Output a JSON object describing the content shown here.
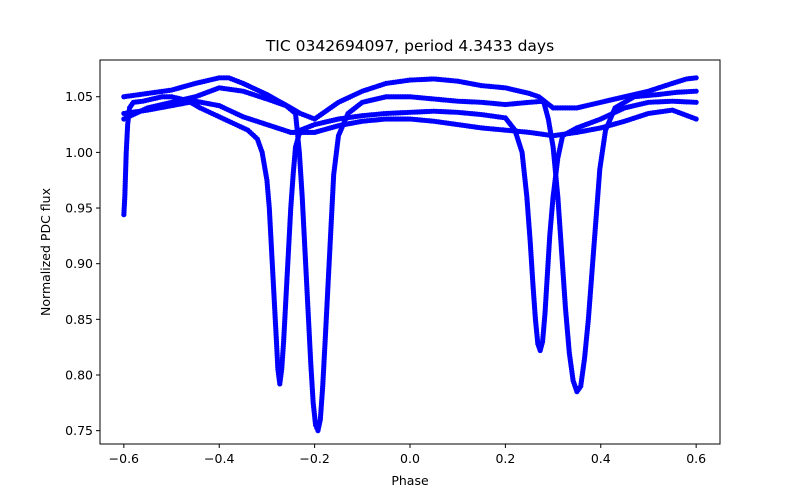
{
  "chart_data": {
    "type": "scatter",
    "title": "TIC 0342694097, period 4.3433 days",
    "xlabel": "Phase",
    "ylabel": "Normalized PDC flux",
    "xlim": [
      -0.65,
      0.65
    ],
    "ylim": [
      0.738,
      1.083
    ],
    "x_ticks": [
      -0.6,
      -0.4,
      -0.2,
      0.0,
      0.2,
      0.4,
      0.6
    ],
    "x_tick_labels": [
      "−0.6",
      "−0.4",
      "−0.2",
      "0.0",
      "0.2",
      "0.4",
      "0.6"
    ],
    "y_ticks": [
      0.75,
      0.8,
      0.85,
      0.9,
      0.95,
      1.0,
      1.05
    ],
    "y_tick_labels": [
      "0.75",
      "0.80",
      "0.85",
      "0.90",
      "0.95",
      "1.00",
      "1.05"
    ],
    "grid": false,
    "legend": "none",
    "marker_color": "#0000ff",
    "series": [
      {
        "description": "eclipse group 1 (deeper-phase primary near −0.273 / 0.273)",
        "points": [
          [
            -0.6,
            0.944
          ],
          [
            -0.598,
            0.96
          ],
          [
            -0.595,
            1.0
          ],
          [
            -0.592,
            1.025
          ],
          [
            -0.588,
            1.04
          ],
          [
            -0.58,
            1.045
          ],
          [
            -0.56,
            1.046
          ],
          [
            -0.54,
            1.048
          ],
          [
            -0.52,
            1.05
          ],
          [
            -0.5,
            1.05
          ],
          [
            -0.48,
            1.048
          ],
          [
            -0.46,
            1.045
          ],
          [
            -0.44,
            1.04
          ],
          [
            -0.42,
            1.036
          ],
          [
            -0.4,
            1.032
          ],
          [
            -0.38,
            1.028
          ],
          [
            -0.36,
            1.024
          ],
          [
            -0.34,
            1.02
          ],
          [
            -0.32,
            1.012
          ],
          [
            -0.31,
            1.0
          ],
          [
            -0.3,
            0.975
          ],
          [
            -0.295,
            0.95
          ],
          [
            -0.29,
            0.91
          ],
          [
            -0.285,
            0.87
          ],
          [
            -0.28,
            0.83
          ],
          [
            -0.277,
            0.805
          ],
          [
            -0.273,
            0.792
          ],
          [
            -0.269,
            0.805
          ],
          [
            -0.265,
            0.83
          ],
          [
            -0.26,
            0.87
          ],
          [
            -0.255,
            0.91
          ],
          [
            -0.25,
            0.95
          ],
          [
            -0.245,
            0.98
          ],
          [
            -0.24,
            1.005
          ],
          [
            -0.23,
            1.02
          ],
          [
            -0.2,
            1.025
          ],
          [
            -0.15,
            1.03
          ],
          [
            -0.1,
            1.033
          ],
          [
            -0.05,
            1.035
          ],
          [
            0.0,
            1.036
          ],
          [
            0.05,
            1.037
          ],
          [
            0.1,
            1.036
          ],
          [
            0.15,
            1.034
          ],
          [
            0.2,
            1.031
          ],
          [
            0.22,
            1.02
          ],
          [
            0.235,
            1.0
          ],
          [
            0.245,
            0.96
          ],
          [
            0.252,
            0.92
          ],
          [
            0.258,
            0.88
          ],
          [
            0.263,
            0.85
          ],
          [
            0.268,
            0.828
          ],
          [
            0.273,
            0.822
          ],
          [
            0.278,
            0.83
          ],
          [
            0.283,
            0.855
          ],
          [
            0.288,
            0.89
          ],
          [
            0.293,
            0.925
          ],
          [
            0.3,
            0.96
          ],
          [
            0.31,
            0.995
          ],
          [
            0.32,
            1.015
          ],
          [
            0.35,
            1.022
          ],
          [
            0.4,
            1.03
          ],
          [
            0.45,
            1.04
          ],
          [
            0.5,
            1.045
          ],
          [
            0.55,
            1.046
          ],
          [
            0.6,
            1.045
          ]
        ]
      },
      {
        "description": "eclipse group 2 (phase-shifted minima near −0.195 / 0.355)",
        "points": [
          [
            -0.6,
            1.03
          ],
          [
            -0.55,
            1.04
          ],
          [
            -0.5,
            1.045
          ],
          [
            -0.45,
            1.05
          ],
          [
            -0.4,
            1.058
          ],
          [
            -0.35,
            1.055
          ],
          [
            -0.3,
            1.048
          ],
          [
            -0.26,
            1.042
          ],
          [
            -0.24,
            1.035
          ],
          [
            -0.232,
            1.0
          ],
          [
            -0.226,
            0.96
          ],
          [
            -0.22,
            0.91
          ],
          [
            -0.214,
            0.86
          ],
          [
            -0.208,
            0.81
          ],
          [
            -0.203,
            0.775
          ],
          [
            -0.198,
            0.755
          ],
          [
            -0.193,
            0.75
          ],
          [
            -0.188,
            0.76
          ],
          [
            -0.183,
            0.79
          ],
          [
            -0.178,
            0.83
          ],
          [
            -0.172,
            0.88
          ],
          [
            -0.166,
            0.93
          ],
          [
            -0.16,
            0.98
          ],
          [
            -0.15,
            1.015
          ],
          [
            -0.13,
            1.035
          ],
          [
            -0.1,
            1.045
          ],
          [
            -0.05,
            1.05
          ],
          [
            0.0,
            1.05
          ],
          [
            0.05,
            1.048
          ],
          [
            0.1,
            1.046
          ],
          [
            0.15,
            1.045
          ],
          [
            0.2,
            1.043
          ],
          [
            0.25,
            1.045
          ],
          [
            0.28,
            1.046
          ],
          [
            0.29,
            1.03
          ],
          [
            0.3,
            1.005
          ],
          [
            0.31,
            0.96
          ],
          [
            0.318,
            0.91
          ],
          [
            0.326,
            0.86
          ],
          [
            0.334,
            0.82
          ],
          [
            0.342,
            0.795
          ],
          [
            0.35,
            0.785
          ],
          [
            0.358,
            0.79
          ],
          [
            0.366,
            0.815
          ],
          [
            0.374,
            0.85
          ],
          [
            0.382,
            0.895
          ],
          [
            0.39,
            0.94
          ],
          [
            0.398,
            0.985
          ],
          [
            0.41,
            1.02
          ],
          [
            0.43,
            1.04
          ],
          [
            0.47,
            1.05
          ],
          [
            0.52,
            1.052
          ],
          [
            0.56,
            1.054
          ],
          [
            0.6,
            1.055
          ]
        ]
      },
      {
        "description": "out-of-eclipse upper envelope",
        "points": [
          [
            -0.6,
            1.05
          ],
          [
            -0.55,
            1.053
          ],
          [
            -0.5,
            1.056
          ],
          [
            -0.45,
            1.062
          ],
          [
            -0.4,
            1.067
          ],
          [
            -0.38,
            1.067
          ],
          [
            -0.35,
            1.062
          ],
          [
            -0.3,
            1.052
          ],
          [
            -0.25,
            1.04
          ],
          [
            -0.23,
            1.035
          ],
          [
            -0.2,
            1.03
          ],
          [
            -0.15,
            1.045
          ],
          [
            -0.1,
            1.055
          ],
          [
            -0.05,
            1.062
          ],
          [
            0.0,
            1.065
          ],
          [
            0.05,
            1.066
          ],
          [
            0.1,
            1.064
          ],
          [
            0.15,
            1.06
          ],
          [
            0.2,
            1.058
          ],
          [
            0.25,
            1.053
          ],
          [
            0.27,
            1.05
          ],
          [
            0.3,
            1.04
          ],
          [
            0.35,
            1.04
          ],
          [
            0.4,
            1.045
          ],
          [
            0.45,
            1.05
          ],
          [
            0.5,
            1.055
          ],
          [
            0.55,
            1.062
          ],
          [
            0.58,
            1.066
          ],
          [
            0.6,
            1.067
          ]
        ]
      },
      {
        "description": "out-of-eclipse lower envelope",
        "points": [
          [
            -0.6,
            1.035
          ],
          [
            -0.55,
            1.038
          ],
          [
            -0.5,
            1.042
          ],
          [
            -0.45,
            1.046
          ],
          [
            -0.4,
            1.042
          ],
          [
            -0.35,
            1.032
          ],
          [
            -0.3,
            1.025
          ],
          [
            -0.25,
            1.018
          ],
          [
            -0.2,
            1.018
          ],
          [
            -0.15,
            1.024
          ],
          [
            -0.1,
            1.028
          ],
          [
            -0.05,
            1.03
          ],
          [
            0.0,
            1.03
          ],
          [
            0.05,
            1.028
          ],
          [
            0.1,
            1.025
          ],
          [
            0.15,
            1.022
          ],
          [
            0.2,
            1.02
          ],
          [
            0.25,
            1.018
          ],
          [
            0.3,
            1.015
          ],
          [
            0.35,
            1.018
          ],
          [
            0.4,
            1.022
          ],
          [
            0.45,
            1.028
          ],
          [
            0.5,
            1.035
          ],
          [
            0.55,
            1.038
          ],
          [
            0.6,
            1.03
          ]
        ]
      }
    ]
  }
}
